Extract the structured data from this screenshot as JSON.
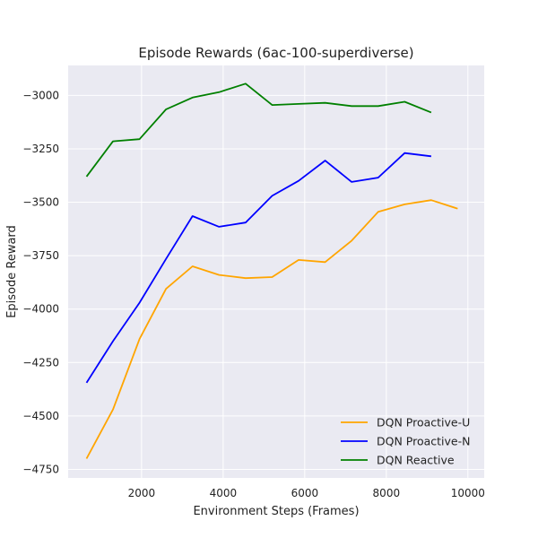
{
  "chart_data": {
    "type": "line",
    "title": "Episode Rewards (6ac-100-superdiverse)",
    "xlabel": "Environment Steps (Frames)",
    "ylabel": "Episode Reward",
    "xlim": [
      200,
      10400
    ],
    "ylim": [
      -4790,
      -2860
    ],
    "xticks": [
      2000,
      4000,
      6000,
      8000,
      10000
    ],
    "yticks": [
      -3000,
      -3250,
      -3500,
      -3750,
      -4000,
      -4250,
      -4500,
      -4750
    ],
    "grid": true,
    "legend_position": "lower-right",
    "colors": {
      "background": "#eaeaf2",
      "grid": "#ffffff"
    },
    "series": [
      {
        "name": "DQN Proactive-U",
        "color": "#ffa500",
        "x": [
          650,
          1300,
          1950,
          2600,
          3250,
          3900,
          4550,
          5200,
          5850,
          6500,
          7150,
          7800,
          8450,
          9100,
          9750
        ],
        "y": [
          -4700,
          -4470,
          -4140,
          -3905,
          -3800,
          -3840,
          -3855,
          -3850,
          -3770,
          -3780,
          -3680,
          -3545,
          -3510,
          -3490,
          -3530
        ]
      },
      {
        "name": "DQN Proactive-N",
        "color": "#0000ff",
        "x": [
          650,
          1300,
          1950,
          2600,
          3250,
          3900,
          4550,
          5200,
          5850,
          6500,
          7150,
          7800,
          8450,
          9100
        ],
        "y": [
          -4345,
          -4150,
          -3970,
          -3765,
          -3565,
          -3615,
          -3595,
          -3470,
          -3400,
          -3305,
          -3405,
          -3385,
          -3270,
          -3285
        ]
      },
      {
        "name": "DQN Reactive",
        "color": "#008000",
        "x": [
          650,
          1300,
          1950,
          2600,
          3250,
          3900,
          4550,
          5200,
          5850,
          6500,
          7150,
          7800,
          8450,
          9100
        ],
        "y": [
          -3380,
          -3215,
          -3205,
          -3065,
          -3010,
          -2985,
          -2945,
          -3045,
          -3040,
          -3035,
          -3050,
          -3050,
          -3030,
          -3080
        ]
      }
    ]
  }
}
